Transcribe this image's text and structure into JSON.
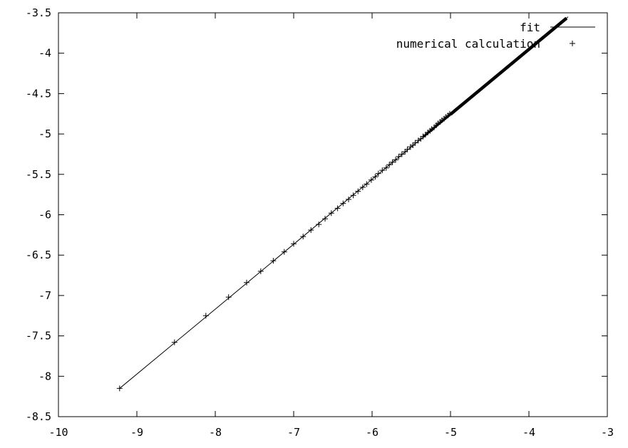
{
  "chart_data": {
    "type": "scatter",
    "xlim": [
      -10,
      -3
    ],
    "ylim": [
      -8.5,
      -3.5
    ],
    "x_ticks": [
      "-10",
      "-9",
      "-8",
      "-7",
      "-6",
      "-5",
      "-4",
      "-3"
    ],
    "y_ticks": [
      "-3.5",
      "-4",
      "-4.5",
      "-5",
      "-5.5",
      "-6",
      "-6.5",
      "-7",
      "-7.5",
      "-8",
      "-8.5"
    ],
    "grid": false,
    "legend_position": "top-right",
    "legend": [
      {
        "label": "fit",
        "style": "line"
      },
      {
        "label": "numerical calculation",
        "style": "plus-marker"
      }
    ],
    "series": [
      {
        "name": "fit",
        "kind": "line",
        "x": [
          -9.22,
          -3.5
        ],
        "y": [
          -8.15,
          -3.55
        ]
      },
      {
        "name": "numerical calculation",
        "kind": "points",
        "x": [
          -9.22,
          -8.52,
          -8.12,
          -7.83,
          -7.6,
          -7.42,
          -7.26,
          -7.12,
          -7.0,
          -6.88,
          -6.78,
          -6.68,
          -6.6,
          -6.52,
          -6.44,
          -6.37,
          -6.3,
          -6.24,
          -6.18,
          -6.12,
          -6.07,
          -6.01,
          -5.96,
          -5.92,
          -5.87,
          -5.82,
          -5.78,
          -5.74,
          -5.7,
          -5.66,
          -5.62,
          -5.58,
          -5.55,
          -5.51,
          -5.48,
          -5.45,
          -5.41,
          -5.38,
          -5.35,
          -5.32,
          -5.29,
          -5.26,
          -5.24,
          -5.21,
          -5.18,
          -5.16,
          -5.13,
          -5.11,
          -5.08,
          -5.06,
          -5.03,
          -5.01
        ],
        "y": [
          -8.15,
          -7.58,
          -7.25,
          -7.02,
          -6.84,
          -6.7,
          -6.57,
          -6.46,
          -6.36,
          -6.27,
          -6.19,
          -6.12,
          -6.05,
          -5.98,
          -5.92,
          -5.86,
          -5.81,
          -5.76,
          -5.71,
          -5.66,
          -5.62,
          -5.57,
          -5.53,
          -5.49,
          -5.45,
          -5.42,
          -5.38,
          -5.35,
          -5.32,
          -5.28,
          -5.25,
          -5.22,
          -5.19,
          -5.16,
          -5.14,
          -5.11,
          -5.08,
          -5.06,
          -5.03,
          -5.01,
          -4.98,
          -4.96,
          -4.94,
          -4.92,
          -4.89,
          -4.87,
          -4.85,
          -4.83,
          -4.81,
          -4.79,
          -4.77,
          -4.75
        ]
      }
    ],
    "dense_band": {
      "x_from": -5.0,
      "x_to": -3.52
    }
  }
}
